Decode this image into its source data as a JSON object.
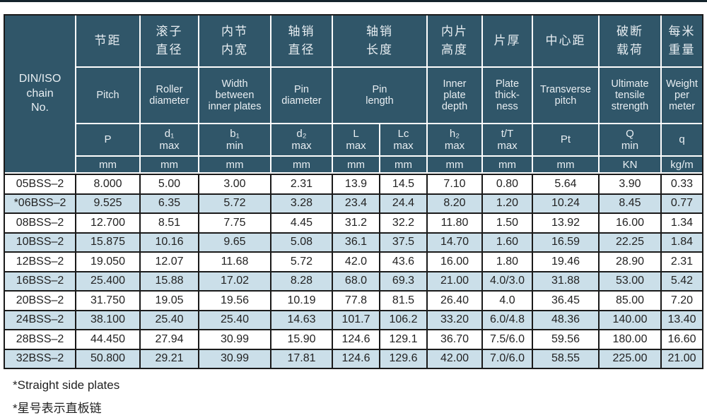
{
  "table": {
    "corner_label": "DIN/ISO\nchain\nNo.",
    "groups": [
      {
        "cn": "节距",
        "en": "Pitch"
      },
      {
        "cn": "滚子\n直径",
        "en": "Roller\ndiameter"
      },
      {
        "cn": "内节\n内宽",
        "en": "Width\nbetween\ninner plates"
      },
      {
        "cn": "轴销\n直径",
        "en": "Pin\ndiameter"
      },
      {
        "cn": "轴销\n长度",
        "en": "Pin\nlength"
      },
      {
        "cn": "内片\n高度",
        "en": "Inner\nplate\ndepth"
      },
      {
        "cn": "片厚",
        "en": "Plate\nthick-\nness"
      },
      {
        "cn": "中心距",
        "en": "Transverse\npitch"
      },
      {
        "cn": "破断\n载荷",
        "en": "Ultimate\ntensile\nstrength"
      },
      {
        "cn": "每米\n重量",
        "en": "Weight\nper\nmeter"
      }
    ],
    "symbols": [
      "P",
      "d₁\nmax",
      "b₁\nmin",
      "d₂\nmax",
      "L\nmax",
      "Lc\nmax",
      "h₂\nmax",
      "t/T\nmax",
      "Pt",
      "Q\nmin",
      "q"
    ],
    "units": [
      "mm",
      "mm",
      "mm",
      "mm",
      "mm",
      "mm",
      "mm",
      "mm",
      "mm",
      "KN",
      "kg/m"
    ],
    "rows": [
      {
        "no": "05BSS–2",
        "values": [
          "8.000",
          "5.00",
          "3.00",
          "2.31",
          "13.9",
          "14.5",
          "7.10",
          "0.80",
          "5.64",
          "3.90",
          "0.33"
        ]
      },
      {
        "no": "*06BSS–2",
        "values": [
          "9.525",
          "6.35",
          "5.72",
          "3.28",
          "23.4",
          "24.4",
          "8.20",
          "1.20",
          "10.24",
          "8.45",
          "0.77"
        ]
      },
      {
        "no": "08BSS–2",
        "values": [
          "12.700",
          "8.51",
          "7.75",
          "4.45",
          "31.2",
          "32.2",
          "11.80",
          "1.50",
          "13.92",
          "16.00",
          "1.34"
        ]
      },
      {
        "no": "10BSS–2",
        "values": [
          "15.875",
          "10.16",
          "9.65",
          "5.08",
          "36.1",
          "37.5",
          "14.70",
          "1.60",
          "16.59",
          "22.25",
          "1.84"
        ]
      },
      {
        "no": "12BSS–2",
        "values": [
          "19.050",
          "12.07",
          "11.68",
          "5.72",
          "42.0",
          "43.6",
          "16.00",
          "1.80",
          "19.46",
          "28.90",
          "2.31"
        ]
      },
      {
        "no": "16BSS–2",
        "values": [
          "25.400",
          "15.88",
          "17.02",
          "8.28",
          "68.0",
          "69.3",
          "21.00",
          "4.0/3.0",
          "31.88",
          "53.00",
          "5.42"
        ]
      },
      {
        "no": "20BSS–2",
        "values": [
          "31.750",
          "19.05",
          "19.56",
          "10.19",
          "77.8",
          "81.5",
          "26.40",
          "4.0",
          "36.45",
          "85.00",
          "7.20"
        ]
      },
      {
        "no": "24BSS–2",
        "values": [
          "38.100",
          "25.40",
          "25.40",
          "14.63",
          "101.7",
          "106.2",
          "33.20",
          "6.0/4.8",
          "48.36",
          "140.00",
          "13.40"
        ]
      },
      {
        "no": "28BSS–2",
        "values": [
          "44.450",
          "27.94",
          "30.99",
          "15.90",
          "124.6",
          "129.1",
          "36.70",
          "7.5/6.0",
          "59.56",
          "180.00",
          "16.60"
        ]
      },
      {
        "no": "32BSS–2",
        "values": [
          "50.800",
          "29.21",
          "30.99",
          "17.81",
          "124.6",
          "129.6",
          "42.00",
          "7.0/6.0",
          "58.55",
          "225.00",
          "21.00"
        ]
      }
    ]
  },
  "footnotes": [
    "*Straight side plates",
    "*星号表示直板链"
  ],
  "colors": {
    "header_bg": "#305669",
    "header_fg": "#e8eef2",
    "row_alt": "#cbdfe9",
    "row_main": "#ffffff",
    "grid_dark": "#1a1a1a",
    "grid_light": "#ffffff",
    "text_dark": "#222222"
  }
}
